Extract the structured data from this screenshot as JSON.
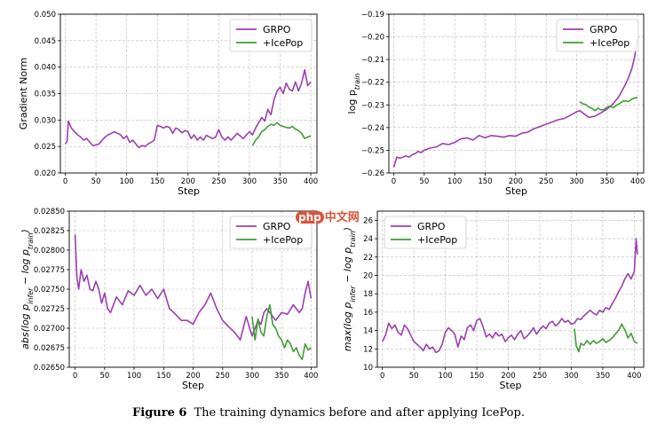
{
  "caption": {
    "label": "Figure 6",
    "text": "The training dynamics before and after applying IcePop."
  },
  "watermark": {
    "badge": "php",
    "text": "中文网"
  },
  "colors": {
    "grpo": "#9b3fb0",
    "icepop": "#3f9e34",
    "grid": "#b9b9b9"
  },
  "chart_data": [
    {
      "type": "line",
      "id": "grad",
      "xlabel": "Step",
      "ylabel": "Gradient Norm",
      "xlim": [
        -8,
        410
      ],
      "ylim": [
        0.02,
        0.05
      ],
      "xticks": [
        0,
        50,
        100,
        150,
        200,
        250,
        300,
        350,
        400
      ],
      "yticks": [
        0.02,
        0.025,
        0.03,
        0.035,
        0.04,
        0.045,
        0.05
      ],
      "ytick_labels": [
        "0.020",
        "0.025",
        "0.030",
        "0.035",
        "0.040",
        "0.045",
        "0.050"
      ],
      "legend": [
        "GRPO",
        "+IcePop"
      ],
      "legend_loc": "upper-right",
      "series": [
        {
          "name": "GRPO",
          "color": "#9b3fb0",
          "x": [
            0,
            3,
            5,
            10,
            15,
            20,
            25,
            30,
            35,
            40,
            45,
            50,
            55,
            60,
            65,
            70,
            75,
            80,
            85,
            90,
            95,
            100,
            105,
            110,
            115,
            120,
            125,
            130,
            135,
            140,
            145,
            150,
            155,
            160,
            165,
            170,
            175,
            180,
            185,
            190,
            195,
            200,
            205,
            210,
            215,
            220,
            225,
            230,
            235,
            240,
            245,
            250,
            255,
            260,
            265,
            270,
            275,
            280,
            285,
            290,
            295,
            300,
            305,
            310,
            315,
            320,
            325,
            330,
            335,
            340,
            345,
            350,
            355,
            360,
            365,
            370,
            375,
            380,
            385,
            390,
            395,
            400
          ],
          "y": [
            0.0255,
            0.026,
            0.0298,
            0.0285,
            0.0278,
            0.0272,
            0.0268,
            0.0262,
            0.0265,
            0.0258,
            0.0252,
            0.0253,
            0.0255,
            0.0262,
            0.0268,
            0.0272,
            0.0275,
            0.0278,
            0.0275,
            0.0272,
            0.0265,
            0.027,
            0.0258,
            0.0262,
            0.0255,
            0.0248,
            0.0252,
            0.025,
            0.0255,
            0.0258,
            0.0262,
            0.029,
            0.0288,
            0.0285,
            0.0288,
            0.0286,
            0.0275,
            0.0285,
            0.0282,
            0.0276,
            0.028,
            0.0278,
            0.0265,
            0.0272,
            0.0262,
            0.0268,
            0.0262,
            0.0271,
            0.0268,
            0.0265,
            0.0268,
            0.0282,
            0.0268,
            0.0262,
            0.0268,
            0.0262,
            0.0268,
            0.0275,
            0.027,
            0.0265,
            0.0272,
            0.0278,
            0.0272,
            0.0285,
            0.0295,
            0.0305,
            0.0298,
            0.032,
            0.031,
            0.0338,
            0.0355,
            0.0362,
            0.035,
            0.037,
            0.0358,
            0.0355,
            0.0372,
            0.0355,
            0.037,
            0.0395,
            0.0365,
            0.0372
          ]
        },
        {
          "name": "+IcePop",
          "color": "#3f9e34",
          "x": [
            305,
            310,
            315,
            320,
            325,
            330,
            335,
            340,
            345,
            350,
            355,
            360,
            365,
            370,
            375,
            380,
            385,
            390,
            395,
            400
          ],
          "y": [
            0.0252,
            0.0262,
            0.0268,
            0.0278,
            0.0282,
            0.0288,
            0.0292,
            0.029,
            0.0295,
            0.029,
            0.0288,
            0.0286,
            0.0285,
            0.0288,
            0.0283,
            0.028,
            0.0275,
            0.0265,
            0.0268,
            0.027
          ]
        }
      ]
    },
    {
      "type": "line",
      "id": "logp",
      "xlabel": "Step",
      "ylabel": "log p_train",
      "ylabel_main": "log p",
      "ylabel_sub": "train",
      "xlim": [
        -8,
        410
      ],
      "ylim": [
        -0.26,
        -0.19
      ],
      "xticks": [
        0,
        50,
        100,
        150,
        200,
        250,
        300,
        350,
        400
      ],
      "yticks": [
        -0.26,
        -0.25,
        -0.24,
        -0.23,
        -0.22,
        -0.21,
        -0.2,
        -0.19
      ],
      "ytick_labels": [
        "−0.26",
        "−0.25",
        "−0.24",
        "−0.23",
        "−0.22",
        "−0.21",
        "−0.20",
        "−0.19"
      ],
      "legend": [
        "GRPO",
        "+IcePop"
      ],
      "legend_loc": "upper-right",
      "series": [
        {
          "name": "GRPO",
          "color": "#9b3fb0",
          "x": [
            0,
            5,
            10,
            15,
            20,
            25,
            30,
            35,
            40,
            45,
            50,
            60,
            70,
            80,
            90,
            100,
            110,
            120,
            130,
            140,
            150,
            160,
            170,
            180,
            190,
            200,
            210,
            220,
            230,
            240,
            250,
            260,
            270,
            280,
            290,
            300,
            305,
            310,
            315,
            320,
            330,
            340,
            350,
            360,
            370,
            380,
            385,
            390,
            395,
            400
          ],
          "y": [
            -0.2575,
            -0.253,
            -0.2535,
            -0.253,
            -0.2525,
            -0.253,
            -0.252,
            -0.2515,
            -0.2505,
            -0.251,
            -0.25,
            -0.249,
            -0.2485,
            -0.247,
            -0.2475,
            -0.2465,
            -0.245,
            -0.2445,
            -0.2455,
            -0.2435,
            -0.2445,
            -0.2435,
            -0.2438,
            -0.2442,
            -0.2435,
            -0.2438,
            -0.2425,
            -0.242,
            -0.2405,
            -0.2395,
            -0.2385,
            -0.2375,
            -0.2365,
            -0.236,
            -0.2345,
            -0.233,
            -0.2325,
            -0.2335,
            -0.2345,
            -0.2355,
            -0.235,
            -0.2335,
            -0.2318,
            -0.2295,
            -0.226,
            -0.221,
            -0.218,
            -0.2145,
            -0.209,
            -0.2008
          ]
        },
        {
          "name": "+IcePop",
          "color": "#3f9e34",
          "x": [
            305,
            310,
            315,
            320,
            325,
            330,
            335,
            340,
            345,
            350,
            355,
            360,
            365,
            370,
            375,
            380,
            385,
            390,
            395,
            400
          ],
          "y": [
            -0.2285,
            -0.2295,
            -0.2298,
            -0.231,
            -0.2315,
            -0.2325,
            -0.2315,
            -0.2322,
            -0.232,
            -0.231,
            -0.2305,
            -0.2312,
            -0.2302,
            -0.2295,
            -0.2285,
            -0.2282,
            -0.2285,
            -0.2275,
            -0.227,
            -0.2268
          ]
        }
      ]
    },
    {
      "type": "line",
      "id": "abs",
      "xlabel": "Step",
      "ylabel": "abs(log p_infer − log p_train)",
      "ylabel_parts": [
        {
          "t": "abs(log ",
          "style": "ital"
        },
        {
          "t": "p",
          "style": "ital"
        },
        {
          "t": "infer",
          "style": "sub"
        },
        {
          "t": " − log ",
          "style": "ital"
        },
        {
          "t": "p",
          "style": "ital"
        },
        {
          "t": "train",
          "style": "sub"
        },
        {
          "t": ")",
          "style": "ital"
        }
      ],
      "xlim": [
        -10,
        410
      ],
      "ylim": [
        0.0265,
        0.0285
      ],
      "xticks": [
        0,
        50,
        100,
        150,
        200,
        250,
        300,
        350,
        400
      ],
      "yticks": [
        0.0265,
        0.02675,
        0.027,
        0.02725,
        0.0275,
        0.02775,
        0.028,
        0.02825,
        0.0285
      ],
      "ytick_labels": [
        "0.02650",
        "0.02675",
        "0.02700",
        "0.02725",
        "0.02750",
        "0.02775",
        "0.02800",
        "0.02825",
        "0.02850"
      ],
      "legend": [
        "GRPO",
        "+IcePop"
      ],
      "legend_loc": "upper-right",
      "series": [
        {
          "name": "GRPO",
          "color": "#9b3fb0",
          "x": [
            0,
            3,
            6,
            10,
            15,
            20,
            25,
            30,
            35,
            40,
            45,
            50,
            55,
            60,
            70,
            80,
            90,
            100,
            110,
            120,
            130,
            140,
            150,
            160,
            170,
            180,
            190,
            200,
            210,
            220,
            230,
            240,
            250,
            260,
            270,
            280,
            290,
            300,
            305,
            310,
            315,
            320,
            325,
            330,
            340,
            350,
            360,
            370,
            380,
            385,
            390,
            395,
            400
          ],
          "y": [
            0.0282,
            0.02765,
            0.0275,
            0.02775,
            0.0276,
            0.02768,
            0.0275,
            0.02748,
            0.0276,
            0.0275,
            0.02732,
            0.02745,
            0.02725,
            0.0272,
            0.0274,
            0.0273,
            0.02748,
            0.02742,
            0.02755,
            0.02742,
            0.0275,
            0.02738,
            0.0275,
            0.02725,
            0.02718,
            0.0271,
            0.0271,
            0.02705,
            0.0272,
            0.0273,
            0.02745,
            0.02725,
            0.0271,
            0.02702,
            0.02695,
            0.02685,
            0.02715,
            0.0269,
            0.027,
            0.0271,
            0.02705,
            0.0272,
            0.02725,
            0.0272,
            0.0271,
            0.0272,
            0.02718,
            0.0273,
            0.0272,
            0.02725,
            0.02745,
            0.0276,
            0.02738
          ]
        },
        {
          "name": "+IcePop",
          "color": "#3f9e34",
          "x": [
            300,
            305,
            310,
            315,
            320,
            325,
            330,
            335,
            340,
            345,
            350,
            355,
            360,
            365,
            370,
            375,
            380,
            385,
            390,
            395,
            400
          ],
          "y": [
            0.02715,
            0.02685,
            0.02712,
            0.02695,
            0.0269,
            0.02715,
            0.0273,
            0.02705,
            0.027,
            0.0269,
            0.02685,
            0.02675,
            0.02685,
            0.0268,
            0.0267,
            0.02675,
            0.02665,
            0.0266,
            0.0268,
            0.02672,
            0.02675
          ]
        }
      ]
    },
    {
      "type": "line",
      "id": "max",
      "xlabel": "Step",
      "ylabel": "max(log p_infer − log p_train)",
      "ylabel_parts": [
        {
          "t": "max(log ",
          "style": "ital"
        },
        {
          "t": "p",
          "style": "ital"
        },
        {
          "t": "infer",
          "style": "sub"
        },
        {
          "t": " − log ",
          "style": "ital"
        },
        {
          "t": "p",
          "style": "ital"
        },
        {
          "t": "train",
          "style": "sub"
        },
        {
          "t": ")",
          "style": "ital"
        }
      ],
      "xlim": [
        -8,
        415
      ],
      "ylim": [
        10,
        27
      ],
      "xticks": [
        0,
        50,
        100,
        150,
        200,
        250,
        300,
        350,
        400
      ],
      "yticks": [
        10,
        12,
        14,
        16,
        18,
        20,
        22,
        24,
        26
      ],
      "ytick_labels": [
        "10",
        "12",
        "14",
        "16",
        "18",
        "20",
        "22",
        "24",
        "26"
      ],
      "legend": [
        "GRPO",
        "+IcePop"
      ],
      "legend_loc": "upper-left",
      "series": [
        {
          "name": "GRPO",
          "color": "#9b3fb0",
          "x": [
            0,
            5,
            10,
            15,
            20,
            25,
            30,
            35,
            40,
            45,
            50,
            55,
            60,
            65,
            70,
            75,
            80,
            85,
            90,
            95,
            100,
            105,
            110,
            115,
            120,
            125,
            130,
            135,
            140,
            145,
            150,
            155,
            160,
            165,
            170,
            175,
            180,
            185,
            190,
            195,
            200,
            205,
            210,
            215,
            220,
            225,
            230,
            235,
            240,
            245,
            250,
            255,
            260,
            265,
            270,
            275,
            280,
            285,
            290,
            295,
            300,
            305,
            310,
            315,
            320,
            325,
            330,
            335,
            340,
            345,
            350,
            355,
            360,
            365,
            370,
            375,
            380,
            385,
            390,
            395,
            400,
            403,
            405
          ],
          "y": [
            12.8,
            13.5,
            14.8,
            14.2,
            14.6,
            13.8,
            13.5,
            14.6,
            14.2,
            13.5,
            12.8,
            12.5,
            12.2,
            11.8,
            12.5,
            12.0,
            12.2,
            11.6,
            11.8,
            12.5,
            13.8,
            14.3,
            14.0,
            13.6,
            12.2,
            13.4,
            13.0,
            14.3,
            14.6,
            14.0,
            15.1,
            15.3,
            14.4,
            13.3,
            13.6,
            13.2,
            13.8,
            13.4,
            13.6,
            12.8,
            13.2,
            13.5,
            13.0,
            13.6,
            14.0,
            13.1,
            13.4,
            13.8,
            14.3,
            13.6,
            14.1,
            14.5,
            14.2,
            14.8,
            15.0,
            14.5,
            14.8,
            15.3,
            14.9,
            15.1,
            14.7,
            14.8,
            15.3,
            15.2,
            15.6,
            15.9,
            16.2,
            15.9,
            15.7,
            16.2,
            16.0,
            16.5,
            16.3,
            16.9,
            17.5,
            18.2,
            18.8,
            19.6,
            20.2,
            19.6,
            20.4,
            24.0,
            22.3
          ]
        },
        {
          "name": "+IcePop",
          "color": "#3f9e34",
          "x": [
            305,
            308,
            312,
            315,
            320,
            325,
            330,
            335,
            340,
            345,
            350,
            355,
            360,
            365,
            370,
            375,
            380,
            385,
            390,
            395,
            400,
            405
          ],
          "y": [
            14.2,
            12.3,
            11.7,
            12.6,
            12.4,
            12.9,
            12.5,
            12.9,
            12.6,
            12.8,
            13.1,
            12.7,
            12.9,
            13.2,
            13.6,
            14.0,
            14.7,
            14.1,
            13.2,
            13.7,
            12.8,
            12.6
          ]
        }
      ]
    }
  ]
}
